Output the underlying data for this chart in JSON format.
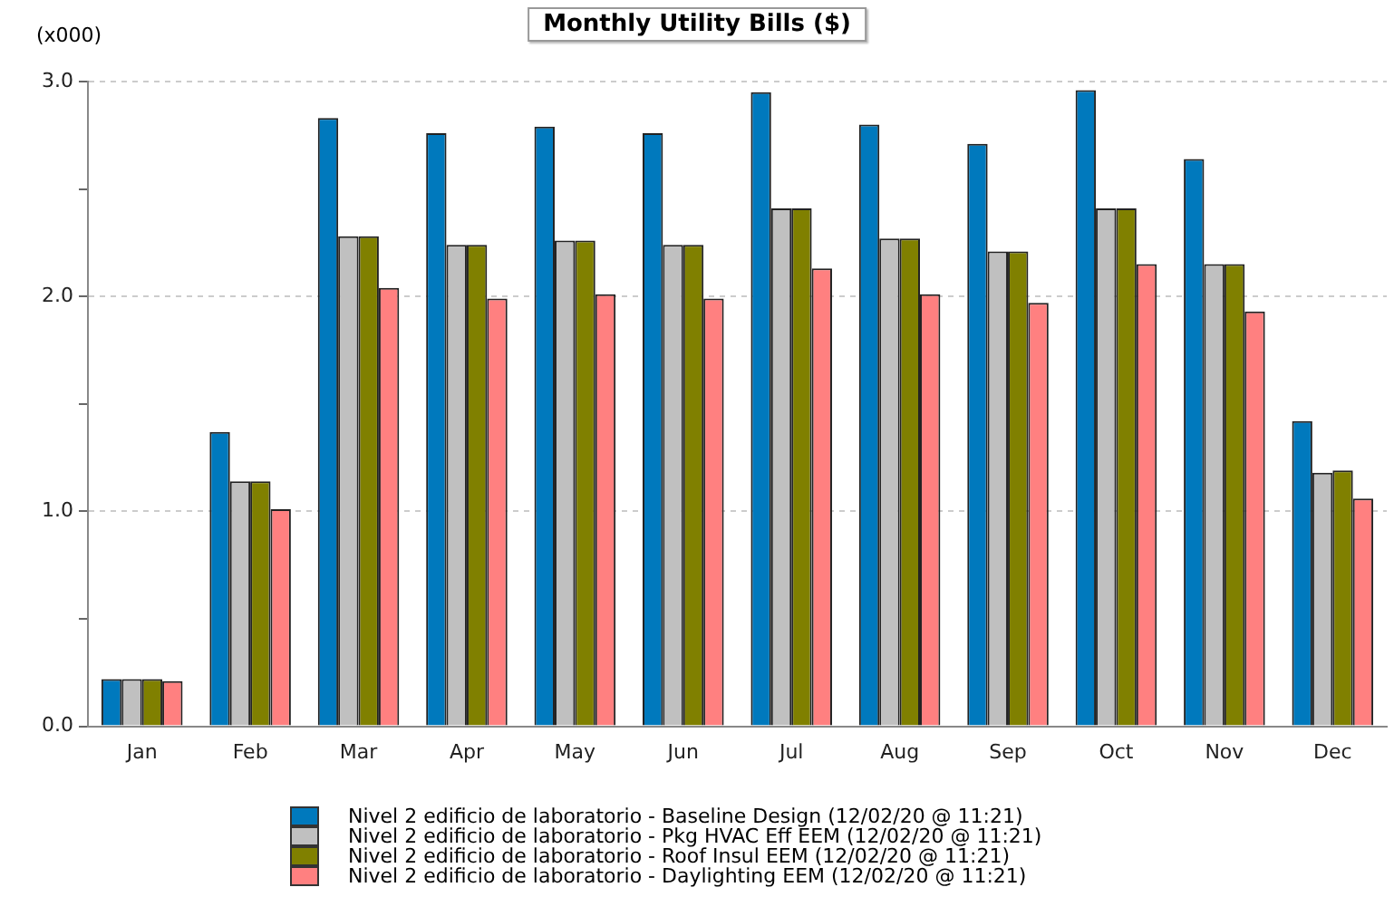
{
  "chart_data": {
    "type": "bar",
    "title": "Monthly Utility Bills ($)",
    "annotations": [
      "(x000)"
    ],
    "categories": [
      "Jan",
      "Feb",
      "Mar",
      "Apr",
      "May",
      "Jun",
      "Jul",
      "Aug",
      "Sep",
      "Oct",
      "Nov",
      "Dec"
    ],
    "series": [
      {
        "name": "Nivel 2 edificio de laboratorio - Baseline Design  (12/02/20 @ 11:21)",
        "color": "#0079bd",
        "values": [
          0.22,
          1.37,
          2.83,
          2.76,
          2.79,
          2.76,
          2.95,
          2.8,
          2.71,
          2.96,
          2.64,
          1.42
        ]
      },
      {
        "name": "Nivel 2 edificio de laboratorio - Pkg HVAC Eff EEM  (12/02/20 @ 11:21)",
        "color": "#c0c0c0",
        "values": [
          0.22,
          1.14,
          2.28,
          2.24,
          2.26,
          2.24,
          2.41,
          2.27,
          2.21,
          2.41,
          2.15,
          1.18
        ]
      },
      {
        "name": "Nivel 2 edificio de laboratorio - Roof Insul EEM  (12/02/20 @ 11:21)",
        "color": "#808000",
        "values": [
          0.22,
          1.14,
          2.28,
          2.24,
          2.26,
          2.24,
          2.41,
          2.27,
          2.21,
          2.41,
          2.15,
          1.19
        ]
      },
      {
        "name": "Nivel 2 edificio de laboratorio - Daylighting EEM  (12/02/20 @ 11:21)",
        "color": "#ff8080",
        "values": [
          0.21,
          1.01,
          2.04,
          1.99,
          2.01,
          1.99,
          2.13,
          2.01,
          1.97,
          2.15,
          1.93,
          1.06
        ]
      }
    ],
    "ylim": [
      0,
      3
    ],
    "yticks": [
      {
        "value": 0,
        "label": "0.0"
      },
      {
        "value": 0.5,
        "label": null
      },
      {
        "value": 1,
        "label": "1.0"
      },
      {
        "value": 1.5,
        "label": null
      },
      {
        "value": 2,
        "label": "2.0"
      },
      {
        "value": 2.5,
        "label": null
      },
      {
        "value": 3,
        "label": "3.0"
      }
    ],
    "grid": "y",
    "legend": "bottom"
  }
}
